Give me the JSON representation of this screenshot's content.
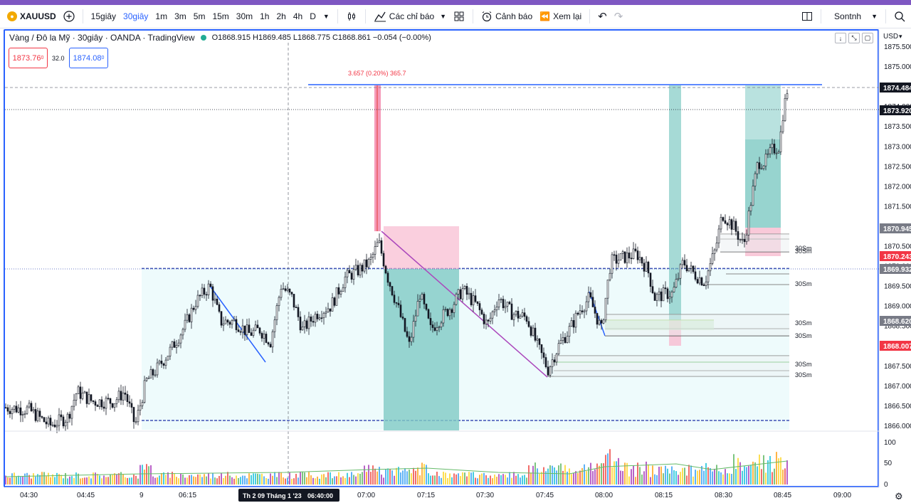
{
  "toolbar": {
    "symbol": "XAUUSD",
    "add_symbol_icon": "plus-circle-icon",
    "timeframes": [
      "15giây",
      "30giây",
      "1m",
      "3m",
      "5m",
      "15m",
      "30m",
      "1h",
      "2h",
      "4h",
      "D"
    ],
    "active_timeframe": "30giây",
    "indicators_label": "Các chỉ báo",
    "alerts_label": "Cảnh báo",
    "replay_label": "Xem lại",
    "layout_name": "Sontnh"
  },
  "legend": {
    "title": "Vàng / Đô la Mỹ · 30giây · OANDA · TradingView",
    "ohlc": "O1868.915  H1869.485  L1868.775  C1868.861  −0.054 (−0.00%)",
    "sell_price": "1873.76",
    "sell_price_small": "0",
    "spread": "32.0",
    "buy_price": "1874.08",
    "buy_price_small": "0"
  },
  "chart_data": {
    "type": "candlestick",
    "currency": "USD",
    "y_ticks": [
      1866.0,
      1866.5,
      1867.0,
      1867.5,
      1868.0,
      1868.5,
      1869.0,
      1869.5,
      1870.0,
      1870.5,
      1871.0,
      1871.5,
      1872.0,
      1872.5,
      1873.0,
      1873.5,
      1874.0,
      1874.5,
      1875.0,
      1875.5
    ],
    "ylim": [
      1865.9,
      1875.6
    ],
    "x_ticks": [
      "04:30",
      "04:45",
      "9",
      "06:15",
      "07:00",
      "07:15",
      "07:30",
      "07:45",
      "08:00",
      "08:15",
      "08:30",
      "08:45",
      "09:00"
    ],
    "crosshair_date": "Th 2 09 Tháng 1 '23",
    "crosshair_time": "06:40:00",
    "price_labels": [
      {
        "value": "1874.484",
        "bg": "#131722",
        "fg": "#ffffff"
      },
      {
        "value": "1873.920",
        "bg": "#131722",
        "fg": "#ffffff"
      },
      {
        "value": "1870.945",
        "bg": "#787b86",
        "fg": "#ffffff"
      },
      {
        "value": "1870.243",
        "bg": "#f23645",
        "fg": "#ffffff"
      },
      {
        "value": "1869.932",
        "bg": "#787b86",
        "fg": "#ffffff"
      },
      {
        "value": "1868.620",
        "bg": "#787b86",
        "fg": "#ffffff"
      },
      {
        "value": "1868.007",
        "bg": "#f23645",
        "fg": "#ffffff"
      }
    ],
    "measure_label": "3.657 (0.20%) 365.7",
    "zone_labels": [
      "30Sm",
      "30Sm",
      "30Sm",
      "30Sm",
      "30Sm",
      "30Sm",
      "30Sm"
    ],
    "volume_ticks": [
      "100",
      "50",
      "0"
    ],
    "colors": {
      "up": "#131722",
      "down": "#131722",
      "range_box": "#e0f7fa",
      "range_line": "#3f51b5",
      "short_stop": "#f8bbd0",
      "short_target": "#80cbc4",
      "trend_line": "#ab47bc",
      "blue_line": "#2962ff"
    }
  }
}
